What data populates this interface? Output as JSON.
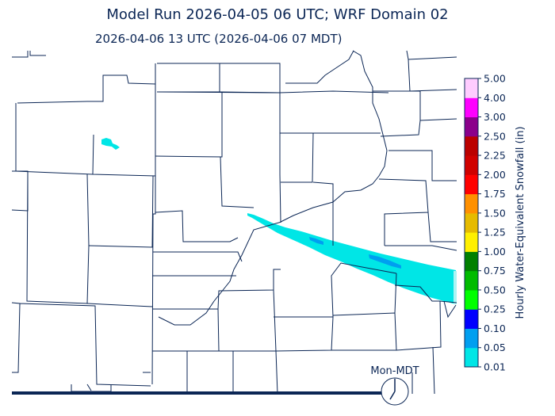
{
  "title": "Model Run 2026-04-05 06 UTC; WRF Domain 02",
  "subtitle": "2026-04-06 13 UTC  (2026-04-06 07 MDT)",
  "colorbar": {
    "label": "Hourly Water-Equivalent Snowfall (in)",
    "ticks": [
      "0.01",
      "0.05",
      "0.10",
      "0.25",
      "0.50",
      "0.75",
      "1.00",
      "1.25",
      "1.50",
      "1.75",
      "2.00",
      "2.25",
      "2.50",
      "3.00",
      "4.00",
      "5.00"
    ],
    "colors": [
      "#00e6e6",
      "#009ff0",
      "#0000ff",
      "#00ff00",
      "#00bb00",
      "#008000",
      "#fff000",
      "#e6bb00",
      "#ff9000",
      "#ff0000",
      "#d00000",
      "#bb0000",
      "#8b008b",
      "#ff00ff",
      "#ffccff"
    ]
  },
  "clock": {
    "label": "Mon-MDT",
    "time": "07:00",
    "icon": "clock-icon"
  },
  "line_color": "#0b2655"
}
